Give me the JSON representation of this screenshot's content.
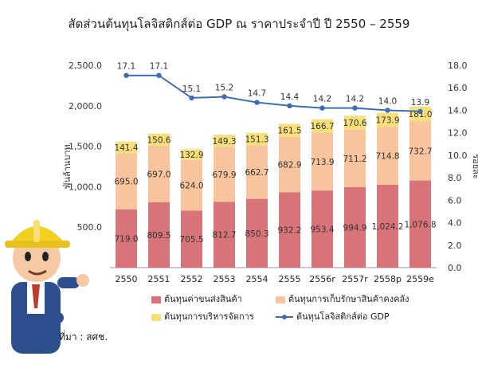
{
  "chart_data": {
    "type": "bar",
    "stacked": true,
    "title": "สัดส่วนต้นทุนโลจิสติกส์ต่อ GDP ณ ราคาประจำปี ปี 2550 – 2559",
    "ylabel": "พันล้านบาท",
    "y2label": "ร้อยละ",
    "categories": [
      "2550",
      "2551",
      "2552",
      "2553",
      "2554",
      "2555",
      "2556r",
      "2557r",
      "2558p",
      "2559e"
    ],
    "ylim": [
      0,
      2500
    ],
    "y_ticks": [
      "500.0",
      "1,000.0",
      "1,500.0",
      "2,000.0",
      "2,500.0"
    ],
    "y2lim": [
      0,
      18
    ],
    "y2_ticks": [
      "0.0",
      "2.0",
      "4.0",
      "6.0",
      "8.0",
      "10.0",
      "12.0",
      "14.0",
      "16.0",
      "18.0"
    ],
    "series": [
      {
        "name": "ต้นทุนค่าขนส่งสินค้า",
        "color": "#d9737a",
        "values": [
          719.0,
          809.5,
          705.5,
          812.7,
          850.3,
          932.2,
          953.4,
          994.9,
          1024.2,
          1076.8
        ],
        "labels": [
          "719.0",
          "809.5",
          "705.5",
          "812.7",
          "850.3",
          "932.2",
          "953.4",
          "994.9",
          "1,024.2",
          "1,076.8"
        ]
      },
      {
        "name": "ต้นทุนการเก็บรักษาสินค้าคงคลัง",
        "color": "#f8c49e",
        "values": [
          695.0,
          697.0,
          624.0,
          679.9,
          662.7,
          682.9,
          713.9,
          711.2,
          714.8,
          732.7
        ],
        "labels": [
          "695.0",
          "697.0",
          "624.0",
          "679.9",
          "662.7",
          "682.9",
          "713.9",
          "711.2",
          "714.8",
          "732.7"
        ]
      },
      {
        "name": "ต้นทุนการบริหารจัดการ",
        "color": "#f7e07a",
        "values": [
          141.4,
          150.6,
          132.9,
          149.3,
          151.3,
          161.5,
          166.7,
          170.6,
          173.9,
          181.0
        ],
        "labels": [
          "141.4",
          "150.6",
          "132.9",
          "149.3",
          "151.3",
          "161.5",
          "166.7",
          "170.6",
          "173.9",
          "181.0"
        ]
      }
    ],
    "line_series": {
      "name": "ต้นทุนโลจิสติกส์ต่อ GDP",
      "color": "#3d6cb5",
      "values": [
        17.1,
        17.1,
        15.1,
        15.2,
        14.7,
        14.4,
        14.2,
        14.2,
        14.0,
        13.9
      ],
      "labels": [
        "17.1",
        "17.1",
        "15.1",
        "15.2",
        "14.7",
        "14.4",
        "14.2",
        "14.2",
        "14.0",
        "13.9"
      ]
    },
    "legend_position": "bottom",
    "grid": false
  },
  "source": "ที่มา : สศช."
}
